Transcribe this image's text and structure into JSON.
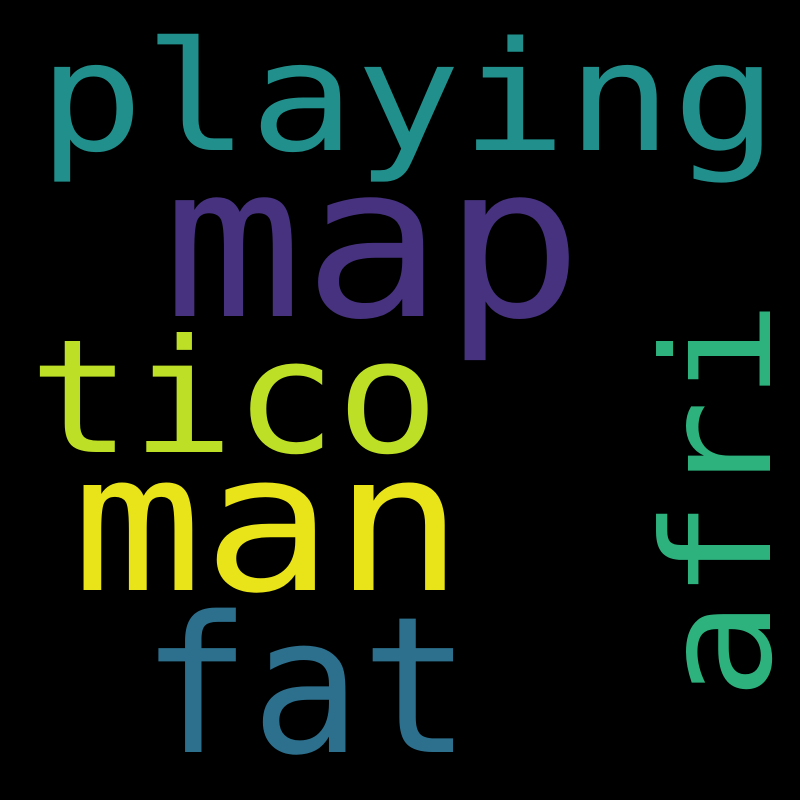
{
  "background": "#000000",
  "words": [
    {
      "id": "word-playing",
      "text": "playing",
      "color": "#21908c"
    },
    {
      "id": "word-map",
      "text": "map",
      "color": "#46327e"
    },
    {
      "id": "word-tico",
      "text": "tico",
      "color": "#bddf26"
    },
    {
      "id": "word-man",
      "text": "man",
      "color": "#e8e419"
    },
    {
      "id": "word-fat",
      "text": "fat",
      "color": "#2d708e"
    },
    {
      "id": "word-afri",
      "text": "afri",
      "color": "#2db27d"
    }
  ]
}
